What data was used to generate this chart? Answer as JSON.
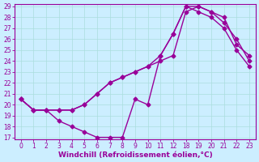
{
  "xlabel": "Windchill (Refroidissement éolien,°C)",
  "bg_color": "#cceeff",
  "line_color": "#990099",
  "grid_color": "#aadddd",
  "ylim": [
    17,
    29
  ],
  "xtick_labels": [
    "0",
    "1",
    "2",
    "3",
    "4",
    "5",
    "6",
    "7",
    "8",
    "9",
    "10",
    "11",
    "12",
    "18",
    "19",
    "20",
    "21",
    "22",
    "23"
  ],
  "yticks": [
    17,
    18,
    19,
    20,
    21,
    22,
    23,
    24,
    25,
    26,
    27,
    28,
    29
  ],
  "series1_y": [
    20.5,
    19.5,
    19.5,
    18.5,
    18.0,
    17.5,
    17.0,
    17.0,
    17.0,
    20.5,
    20.0,
    24.5,
    26.5,
    29.0,
    28.5,
    28.0,
    27.0,
    25.0,
    23.5
  ],
  "series2_y": [
    20.5,
    19.5,
    19.5,
    19.5,
    19.5,
    20.0,
    21.0,
    22.0,
    22.5,
    23.0,
    23.5,
    24.0,
    24.5,
    28.5,
    29.0,
    28.5,
    27.5,
    26.0,
    24.0
  ],
  "series3_y": [
    20.5,
    19.5,
    19.5,
    19.5,
    19.5,
    20.0,
    21.0,
    22.0,
    22.5,
    23.0,
    23.5,
    24.5,
    26.5,
    29.0,
    29.0,
    28.5,
    28.0,
    25.5,
    24.5
  ],
  "marker": "D",
  "markersize": 2.5,
  "linewidth": 1.0,
  "tick_fontsize": 5.5,
  "label_fontsize": 6.5
}
